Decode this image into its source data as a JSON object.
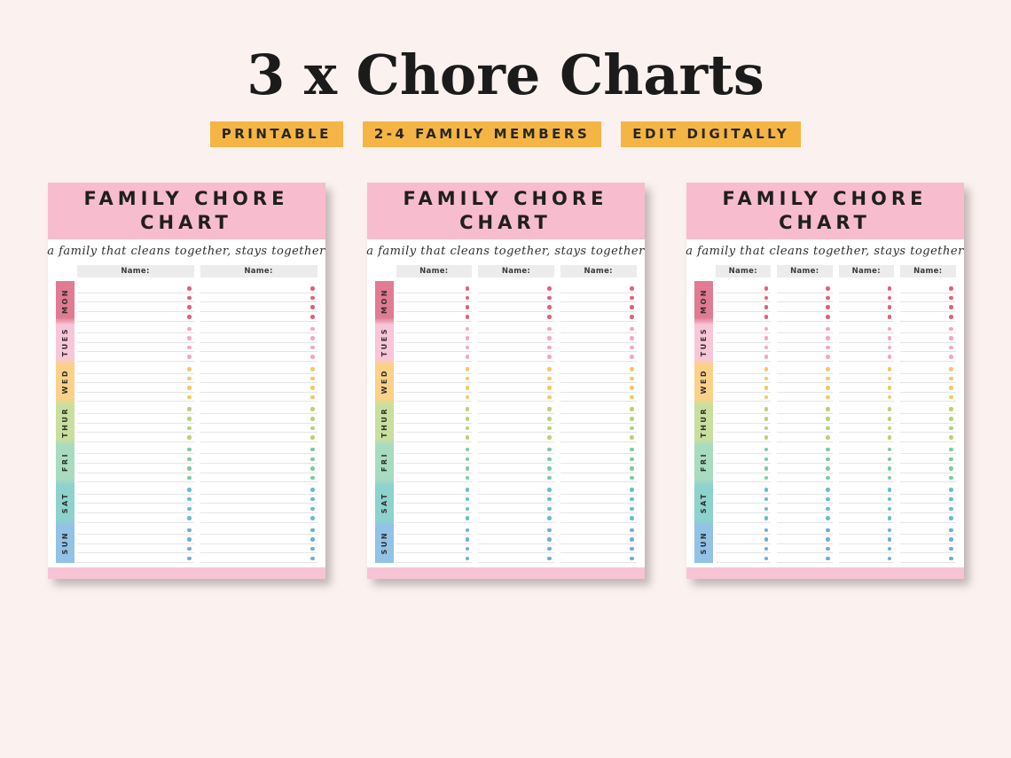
{
  "page": {
    "title": "3 x Chore Charts",
    "badges": [
      "PRINTABLE",
      "2-4 FAMILY MEMBERS",
      "EDIT DIGITALLY"
    ],
    "badge_color": "#f5b544",
    "background_color": "#fbf2f0"
  },
  "chart_template": {
    "title": "FAMILY CHORE CHART",
    "subtitle": "a family that cleans together, stays together",
    "name_label": "Name:",
    "header_color": "#f8bccf",
    "footer_color": "#f6c4d5",
    "rows_per_day": 4,
    "days": [
      {
        "label": "MON",
        "strip_color": "#e17b91",
        "dot_color": "#e35f7f"
      },
      {
        "label": "TUES",
        "strip_color": "#f8c6d8",
        "dot_color": "#f1a8c2"
      },
      {
        "label": "WED",
        "strip_color": "#fbd189",
        "dot_color": "#f5c765"
      },
      {
        "label": "THUR",
        "strip_color": "#c8df9f",
        "dot_color": "#bad179"
      },
      {
        "label": "FRI",
        "strip_color": "#a8dbc0",
        "dot_color": "#7fc8a6"
      },
      {
        "label": "SAT",
        "strip_color": "#8dd2cd",
        "dot_color": "#67bec9"
      },
      {
        "label": "SUN",
        "strip_color": "#92c2e5",
        "dot_color": "#6fadd6"
      }
    ]
  },
  "charts": [
    {
      "name_columns": 2
    },
    {
      "name_columns": 3
    },
    {
      "name_columns": 4
    }
  ]
}
